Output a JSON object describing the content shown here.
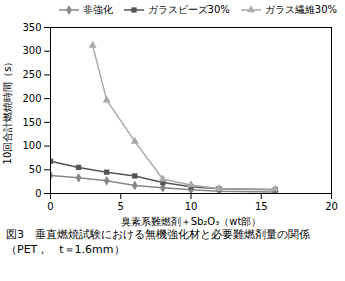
{
  "chart_data": {
    "type": "line",
    "title": "図3　垂直燃焼試験における無機強化材と必要難燃剤量の関係",
    "subtitle": "（PET，　t＝1.6mm）",
    "xlabel": "臭素系難燃剤＋Sb₂O₃（wt部）",
    "ylabel": "10回合計燃焼時間（s）",
    "xlim": [
      0,
      20
    ],
    "ylim": [
      0,
      350
    ],
    "xticks": [
      0,
      5,
      10,
      15,
      20
    ],
    "yticks": [
      0,
      50,
      100,
      150,
      200,
      250,
      300,
      350
    ],
    "grid": false,
    "legend": "upper right",
    "series": [
      {
        "name": "非強化",
        "color": "#888888",
        "marker": "diamond",
        "x": [
          0,
          2,
          4,
          6,
          8,
          10,
          12,
          16
        ],
        "values": [
          38,
          33,
          27,
          17,
          12,
          8,
          5,
          3
        ]
      },
      {
        "name": "ガラスビーズ30%",
        "color": "#555555",
        "marker": "square",
        "x": [
          0,
          2,
          4,
          6,
          8,
          10,
          12,
          16
        ],
        "values": [
          68,
          55,
          45,
          37,
          23,
          14,
          10,
          8
        ]
      },
      {
        "name": "ガラス繊維30%",
        "color": "#aaaaaa",
        "marker": "triangle",
        "x": [
          3,
          4,
          6,
          8,
          10,
          12,
          16
        ],
        "values": [
          312,
          197,
          110,
          30,
          18,
          10,
          9
        ]
      }
    ]
  }
}
